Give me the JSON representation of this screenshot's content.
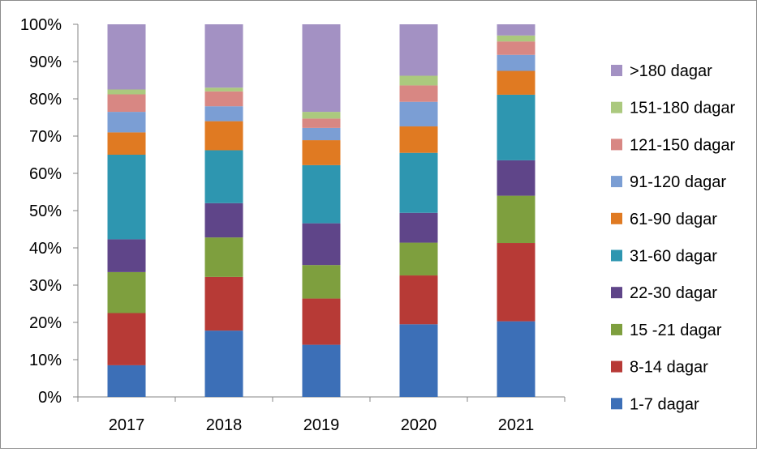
{
  "chart_data": {
    "type": "bar",
    "stacked": true,
    "categories": [
      "2017",
      "2018",
      "2019",
      "2020",
      "2021"
    ],
    "y_ticks": [
      "0%",
      "10%",
      "20%",
      "30%",
      "40%",
      "50%",
      "60%",
      "70%",
      "80%",
      "90%",
      "100%"
    ],
    "ylim": [
      0,
      100
    ],
    "series": [
      {
        "name": "1-7 dagar",
        "color": "#3c6fb7",
        "values": [
          8.5,
          17.8,
          14.0,
          19.5,
          20.3
        ]
      },
      {
        "name": "8-14 dagar",
        "color": "#b73a36",
        "values": [
          14.0,
          14.4,
          12.4,
          13.1,
          21.0
        ]
      },
      {
        "name": "15 -21 dagar",
        "color": "#7e9f3e",
        "values": [
          11.0,
          10.6,
          9.0,
          8.8,
          12.7
        ]
      },
      {
        "name": "22-30 dagar",
        "color": "#5f4589",
        "values": [
          8.8,
          9.2,
          11.2,
          8.0,
          9.5
        ]
      },
      {
        "name": "31-60 dagar",
        "color": "#2e96b0",
        "values": [
          22.7,
          14.2,
          15.6,
          16.1,
          17.6
        ]
      },
      {
        "name": "61-90 dagar",
        "color": "#e07a22",
        "values": [
          6.0,
          7.8,
          6.7,
          7.1,
          6.4
        ]
      },
      {
        "name": "91-120 dagar",
        "color": "#7b9ed4",
        "values": [
          5.5,
          4.0,
          3.3,
          6.6,
          4.3
        ]
      },
      {
        "name": "121-150 dagar",
        "color": "#d88783",
        "values": [
          4.7,
          4.0,
          2.5,
          4.4,
          3.6
        ]
      },
      {
        "name": "151-180 dagar",
        "color": "#abc97e",
        "values": [
          1.3,
          1.0,
          1.8,
          2.6,
          1.6
        ]
      },
      {
        "name": ">180 dagar",
        "color": "#a391c3",
        "values": [
          17.5,
          17.0,
          23.5,
          13.8,
          3.0
        ]
      }
    ],
    "legend_position": "right",
    "grid": false
  }
}
